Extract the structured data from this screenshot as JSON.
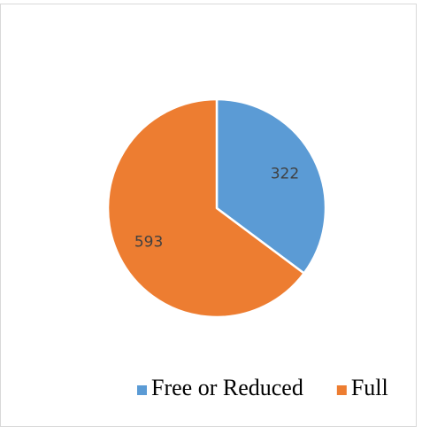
{
  "chart_data": {
    "type": "pie",
    "categories": [
      "Free or Reduced",
      "Full"
    ],
    "values": [
      322,
      593
    ],
    "colors": [
      "#5b9bd5",
      "#ed7d31"
    ],
    "legend": "bottom"
  }
}
